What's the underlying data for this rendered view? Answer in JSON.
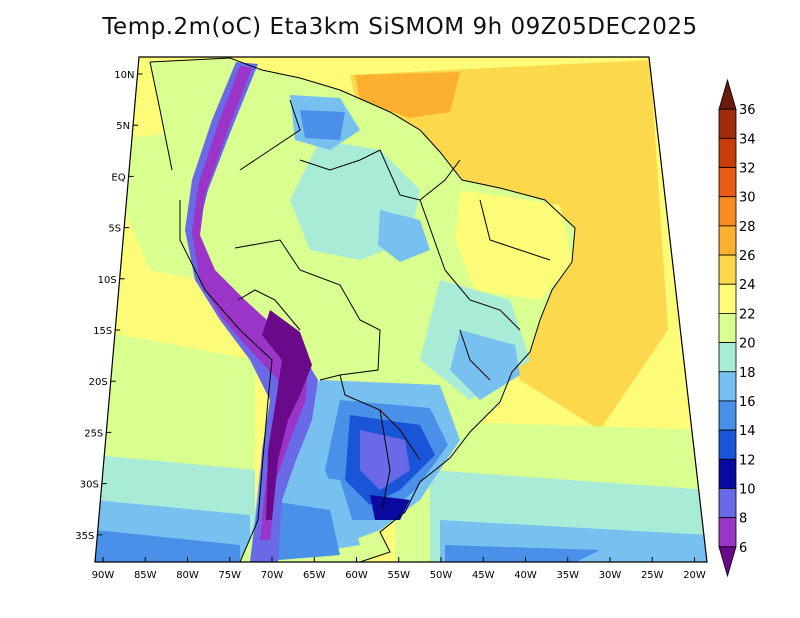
{
  "title": "Temp.2m(oC) Eta3km SiSMOM 9h 09Z05DEC2025",
  "map": {
    "lat_labels": [
      "10N",
      "5N",
      "EQ",
      "5S",
      "10S",
      "15S",
      "20S",
      "25S",
      "30S",
      "35S"
    ],
    "lon_labels": [
      "90W",
      "85W",
      "80W",
      "75W",
      "70W",
      "65W",
      "60W",
      "55W",
      "50W",
      "45W",
      "40W",
      "35W",
      "30W",
      "25W",
      "20W"
    ]
  },
  "colorbar": {
    "labels": [
      "6",
      "8",
      "10",
      "12",
      "14",
      "16",
      "18",
      "20",
      "22",
      "24",
      "26",
      "28",
      "30",
      "32",
      "34",
      "36"
    ],
    "colors": [
      "#6a0a8a",
      "#9a35c8",
      "#6a6ae8",
      "#0a0aa0",
      "#1a55d8",
      "#4a90e8",
      "#78c0f0",
      "#a8ecd8",
      "#d8ff90",
      "#fcfc78",
      "#fcd84c",
      "#fcb030",
      "#f88c24",
      "#e85c14",
      "#c83c0c",
      "#a02c0c",
      "#6a1a0c"
    ]
  }
}
